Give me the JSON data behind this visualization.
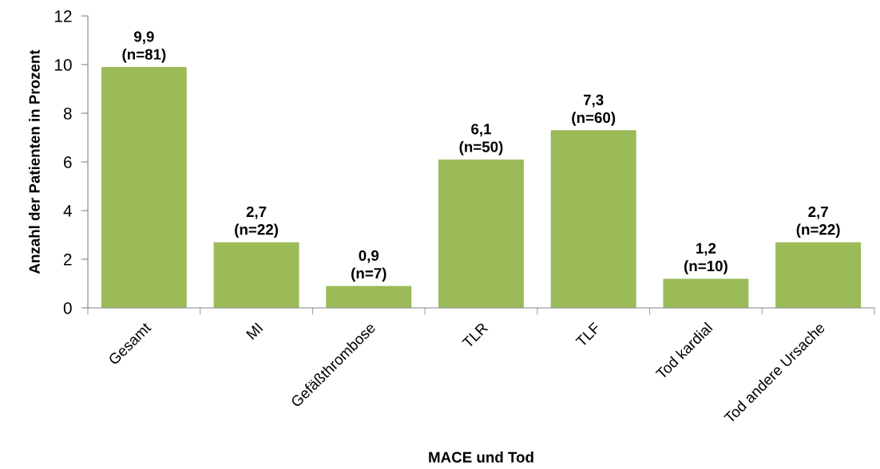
{
  "chart_data": {
    "type": "bar",
    "xlabel": "MACE und Tod",
    "ylabel": "Anzahl der Patienten in Prozent",
    "categories": [
      "Gesamt",
      "MI",
      "Gefäßthrombose",
      "TLR",
      "TLF",
      "Tod kardial",
      "Tod andere Ursache"
    ],
    "values": [
      9.9,
      2.7,
      0.9,
      6.1,
      7.3,
      1.2,
      2.7
    ],
    "color": "#9bbb59",
    "value_labels": [
      "9,9\n(n=81)",
      "2,7\n(n=22)",
      "0,9\n(n=7)",
      "6,1\n(n=50)",
      "7,3\n(n=60)",
      "1,2\n(n=10)",
      "2,7\n(n=22)"
    ],
    "ylim": [
      0,
      12
    ],
    "yticks": [
      0,
      2,
      4,
      6,
      8,
      10,
      12
    ]
  }
}
